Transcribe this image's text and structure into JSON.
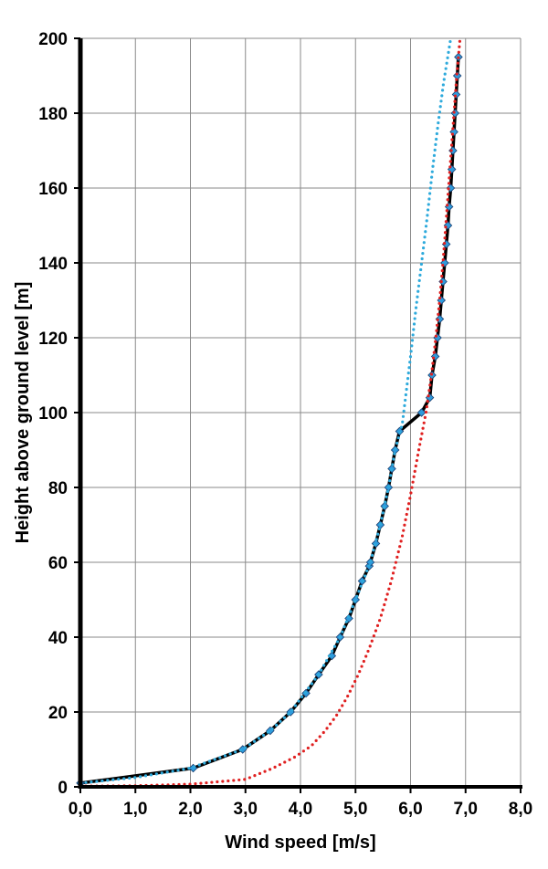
{
  "chart_data": {
    "type": "line",
    "title": "",
    "xlabel": "Wind speed [m/s]",
    "ylabel": "Height above ground level [m]",
    "xlim": [
      0,
      8
    ],
    "ylim": [
      0,
      200
    ],
    "x_ticks": [
      "0,0",
      "1,0",
      "2,0",
      "3,0",
      "4,0",
      "5,0",
      "6,0",
      "7,0",
      "8,0"
    ],
    "y_ticks": [
      "0",
      "20",
      "40",
      "60",
      "80",
      "100",
      "120",
      "140",
      "160",
      "180",
      "200"
    ],
    "grid": true,
    "legend": "none",
    "series": [
      {
        "style": "solid-black-with-blue-diamond-markers",
        "color": "#000000",
        "marker_color": "#2e9bdc",
        "points": [
          [
            0.0,
            1
          ],
          [
            2.05,
            5
          ],
          [
            2.95,
            10
          ],
          [
            3.45,
            15
          ],
          [
            3.82,
            20
          ],
          [
            4.1,
            25
          ],
          [
            4.33,
            30
          ],
          [
            4.57,
            35
          ],
          [
            4.72,
            40
          ],
          [
            4.88,
            45
          ],
          [
            5.0,
            50
          ],
          [
            5.12,
            55
          ],
          [
            5.25,
            59
          ],
          [
            5.27,
            60
          ],
          [
            5.37,
            65
          ],
          [
            5.45,
            70
          ],
          [
            5.53,
            75
          ],
          [
            5.6,
            80
          ],
          [
            5.66,
            85
          ],
          [
            5.72,
            90
          ],
          [
            5.8,
            95
          ],
          [
            6.2,
            100
          ],
          [
            6.35,
            104
          ],
          [
            6.39,
            110
          ],
          [
            6.45,
            115
          ],
          [
            6.49,
            120
          ],
          [
            6.53,
            125
          ],
          [
            6.56,
            130
          ],
          [
            6.59,
            135
          ],
          [
            6.62,
            140
          ],
          [
            6.65,
            145
          ],
          [
            6.68,
            150
          ],
          [
            6.7,
            155
          ],
          [
            6.73,
            160
          ],
          [
            6.75,
            165
          ],
          [
            6.77,
            170
          ],
          [
            6.79,
            175
          ],
          [
            6.81,
            180
          ],
          [
            6.83,
            185
          ],
          [
            6.85,
            190
          ],
          [
            6.87,
            195
          ]
        ]
      },
      {
        "style": "dotted",
        "color": "#2eaadc",
        "points": [
          [
            0.0,
            1
          ],
          [
            1.0,
            2.5
          ],
          [
            2.0,
            5
          ],
          [
            2.95,
            10
          ],
          [
            3.45,
            15
          ],
          [
            3.82,
            20
          ],
          [
            4.33,
            30
          ],
          [
            4.72,
            40
          ],
          [
            5.0,
            50
          ],
          [
            5.27,
            60
          ],
          [
            5.45,
            70
          ],
          [
            5.6,
            80
          ],
          [
            5.72,
            90
          ],
          [
            5.85,
            97
          ],
          [
            6.0,
            115
          ],
          [
            6.1,
            128
          ],
          [
            6.2,
            140
          ],
          [
            6.3,
            152
          ],
          [
            6.4,
            165
          ],
          [
            6.5,
            177
          ],
          [
            6.6,
            188
          ],
          [
            6.73,
            200
          ]
        ]
      },
      {
        "style": "dotted",
        "color": "#e02020",
        "points": [
          [
            0.0,
            0.2
          ],
          [
            1.0,
            0.3
          ],
          [
            2.0,
            0.7
          ],
          [
            3.0,
            2
          ],
          [
            3.5,
            5
          ],
          [
            3.9,
            8
          ],
          [
            4.2,
            11
          ],
          [
            4.45,
            15
          ],
          [
            4.65,
            19
          ],
          [
            4.85,
            24
          ],
          [
            5.05,
            30
          ],
          [
            5.25,
            37
          ],
          [
            5.45,
            45
          ],
          [
            5.65,
            55
          ],
          [
            5.85,
            67
          ],
          [
            6.0,
            78
          ],
          [
            6.15,
            90
          ],
          [
            6.28,
            100
          ],
          [
            6.38,
            110
          ],
          [
            6.46,
            120
          ],
          [
            6.53,
            130
          ],
          [
            6.59,
            140
          ],
          [
            6.64,
            150
          ],
          [
            6.69,
            160
          ],
          [
            6.74,
            170
          ],
          [
            6.79,
            180
          ],
          [
            6.84,
            190
          ],
          [
            6.9,
            200
          ]
        ]
      }
    ]
  }
}
